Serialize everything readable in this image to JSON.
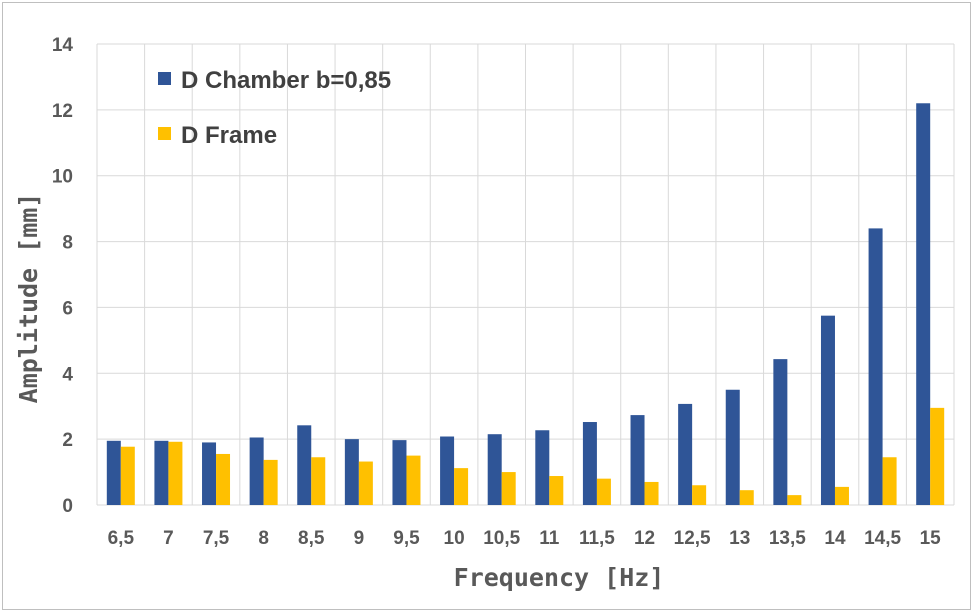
{
  "chart_data": {
    "type": "bar",
    "title": "",
    "xlabel": "Frequency [Hz]",
    "ylabel": "Amplitude [mm]",
    "ylim": [
      0,
      14
    ],
    "yticks": [
      "0",
      "2",
      "4",
      "6",
      "8",
      "10",
      "12",
      "14"
    ],
    "grid": true,
    "legend_position": "top-left",
    "categories": [
      "6,5",
      "7",
      "7,5",
      "8",
      "8,5",
      "9",
      "9,5",
      "10",
      "10,5",
      "11",
      "11,5",
      "12",
      "12,5",
      "13",
      "13,5",
      "14",
      "14,5",
      "15"
    ],
    "series": [
      {
        "name": "D Chamber b=0,85",
        "color": "#2f5597",
        "values": [
          1.95,
          1.95,
          1.9,
          2.05,
          2.42,
          2.0,
          1.97,
          2.08,
          2.15,
          2.27,
          2.52,
          2.73,
          3.07,
          3.5,
          4.43,
          5.75,
          8.4,
          12.2
        ]
      },
      {
        "name": "D Frame",
        "color": "#ffc000",
        "values": [
          1.77,
          1.92,
          1.55,
          1.37,
          1.45,
          1.32,
          1.5,
          1.12,
          1.0,
          0.88,
          0.8,
          0.7,
          0.6,
          0.45,
          0.3,
          0.55,
          1.45,
          2.95
        ]
      }
    ]
  }
}
